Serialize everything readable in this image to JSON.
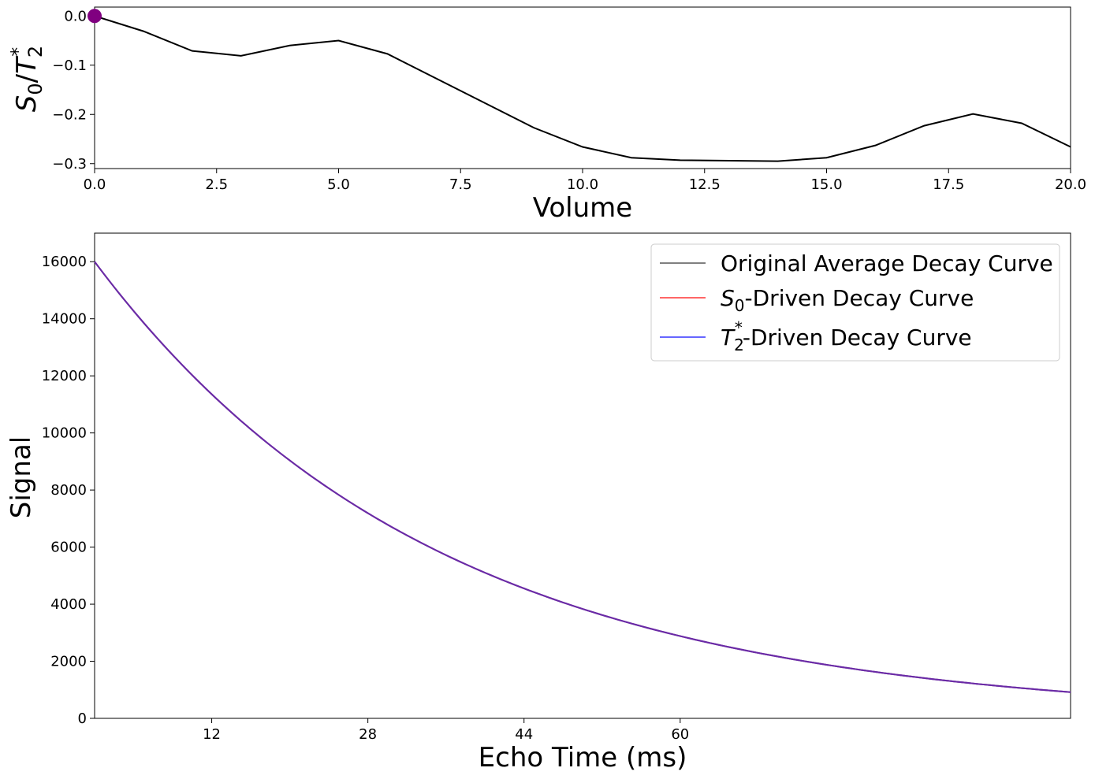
{
  "chart_data": [
    {
      "type": "line",
      "xlabel": "Volume",
      "ylabel_parts": {
        "base": "S",
        "sub0": "0",
        "slash": "/",
        "T": "T",
        "sub2": "2",
        "sup": "*"
      },
      "xlim": [
        0,
        20
      ],
      "ylim": [
        -0.31,
        0.018
      ],
      "xticks": [
        "0.0",
        "2.5",
        "5.0",
        "7.5",
        "10.0",
        "12.5",
        "15.0",
        "17.5",
        "20.0"
      ],
      "xtick_values": [
        0,
        2.5,
        5,
        7.5,
        10,
        12.5,
        15,
        17.5,
        20
      ],
      "yticks": [
        "0.0",
        "−0.1",
        "−0.2",
        "−0.3"
      ],
      "ytick_values": [
        0,
        -0.1,
        -0.2,
        -0.3
      ],
      "series": [
        {
          "color": "#000000",
          "x": [
            0,
            1,
            2,
            3,
            4,
            5,
            6,
            7,
            8,
            9,
            10,
            11,
            12,
            13,
            14,
            15,
            16,
            17,
            18,
            19,
            20
          ],
          "values": [
            0.0,
            -0.031,
            -0.071,
            -0.081,
            -0.06,
            -0.05,
            -0.077,
            -0.127,
            -0.177,
            -0.227,
            -0.266,
            -0.288,
            -0.293,
            -0.294,
            -0.295,
            -0.288,
            -0.263,
            -0.223,
            -0.199,
            -0.218,
            -0.266
          ]
        }
      ],
      "marker": {
        "x": 0,
        "y": 0,
        "color": "#800080"
      }
    },
    {
      "type": "line",
      "xlabel": "Echo Time (ms)",
      "ylabel": "Signal",
      "xlim": [
        0,
        100
      ],
      "ylim": [
        0,
        17000
      ],
      "xticks": [
        "12",
        "28",
        "44",
        "60"
      ],
      "xtick_values": [
        12,
        28,
        44,
        60
      ],
      "yticks": [
        "0",
        "2000",
        "4000",
        "6000",
        "8000",
        "10000",
        "12000",
        "14000",
        "16000"
      ],
      "ytick_values": [
        0,
        2000,
        4000,
        6000,
        8000,
        10000,
        12000,
        14000,
        16000
      ],
      "legend_position": "upper right",
      "series": [
        {
          "name": "Original Average Decay Curve",
          "color": "#808080",
          "S0": 16000,
          "T2star": 35
        },
        {
          "name": "-Driven Decay Curve",
          "name_prefix_symbol": "S",
          "name_prefix_sub": "0",
          "color": "#ff6666",
          "S0": 16000,
          "T2star": 35
        },
        {
          "name": "-Driven Decay Curve",
          "name_prefix_symbol": "T",
          "name_prefix_sub": "2",
          "name_prefix_sup": "*",
          "color": "#6666ff",
          "S0": 16000,
          "T2star": 35
        }
      ],
      "overlay_color": "#6a2aa6"
    }
  ]
}
